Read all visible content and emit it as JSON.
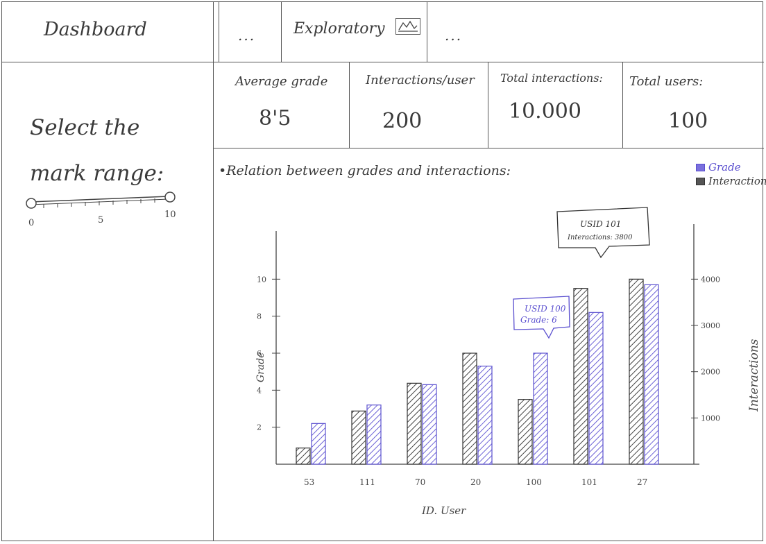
{
  "app": {
    "title": "Dashboard"
  },
  "tabs": [
    {
      "label": "..."
    },
    {
      "label": "Exploratory",
      "icon": "area-chart-icon"
    },
    {
      "label": "..."
    }
  ],
  "kpis": [
    {
      "label": "Average grade",
      "value": "8'5"
    },
    {
      "label": "Interactions/user",
      "value": "200"
    },
    {
      "label": "Total interactions:",
      "value": "10.000"
    },
    {
      "label": "Total users:",
      "value": "100"
    }
  ],
  "sidebar": {
    "filter_label": "Select the mark range:",
    "slider": {
      "min_label": "0",
      "mid_label": "5",
      "max_label": "10",
      "value_low": 0,
      "value_high": 10
    }
  },
  "chart": {
    "title": "•Relation between grades and interactions:",
    "legend": [
      {
        "label": "Grade",
        "color": "#5a4fcf"
      },
      {
        "label": "Interactions",
        "color": "#333333"
      }
    ],
    "tooltips": [
      {
        "line1": "USID 101",
        "line2": "Interactions: 3800"
      },
      {
        "line1": "USID 100",
        "line2": "Grade: 6"
      }
    ]
  },
  "chart_data": {
    "type": "bar",
    "categories": [
      "53",
      "111",
      "70",
      "20",
      "100",
      "101",
      "27"
    ],
    "xlabel": "ID. User",
    "ylabel": "Grade",
    "y2label": "Interactions",
    "ylim": [
      0,
      12
    ],
    "y2lim": [
      0,
      4800
    ],
    "yticks": [
      "2",
      "4",
      "6",
      "8",
      "10"
    ],
    "y2ticks": [
      "1000",
      "2000",
      "3000",
      "4000"
    ],
    "series": [
      {
        "name": "Interactions",
        "axis": "right",
        "values": [
          350,
          1150,
          1750,
          2400,
          1400,
          3800,
          4000
        ]
      },
      {
        "name": "Grade",
        "axis": "left",
        "values": [
          2.2,
          3.2,
          4.3,
          5.3,
          6,
          8.2,
          9.7
        ]
      }
    ]
  }
}
